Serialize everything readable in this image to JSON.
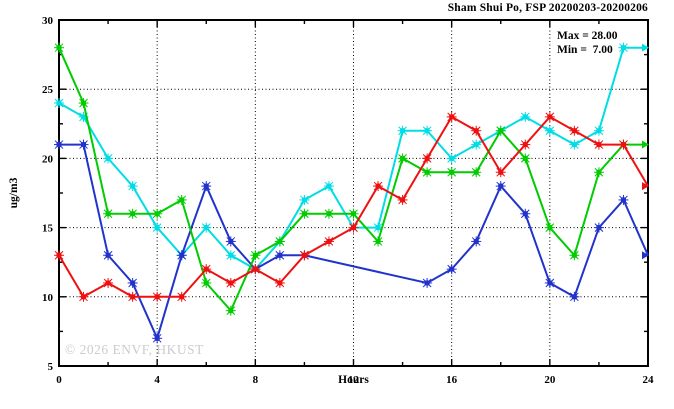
{
  "header": {
    "title": "Sham Shui Po, FSP 20200203-20200206"
  },
  "annotations": {
    "max": "Max = 28.00",
    "min": "Min =  7.00"
  },
  "axes": {
    "y_title": "ug/m3",
    "x_title": "Hours"
  },
  "watermark": "© 2026 ENVF, HKUST",
  "colors": {
    "frame": "#000000",
    "background": "#ffffff",
    "watermark": "#cccccc",
    "grid": "#000000"
  },
  "chart_data": {
    "type": "line",
    "title": "Sham Shui Po, FSP 20200203-20200206",
    "xlabel": "Hours",
    "ylabel": "ug/m3",
    "xlim": [
      0,
      24
    ],
    "ylim": [
      5,
      30
    ],
    "x_major_ticks": [
      0,
      4,
      8,
      12,
      16,
      20,
      24
    ],
    "x_minor_ticks": [
      2,
      6,
      10,
      14,
      18,
      22
    ],
    "y_major_ticks": [
      5,
      10,
      15,
      20,
      25,
      30
    ],
    "y_minor_ticks": [
      7.5,
      12.5,
      17.5,
      22.5,
      27.5
    ],
    "grid": "dotted-at-major-ticks",
    "legend": "none",
    "marker": "square-star",
    "annotations": {
      "max": 28.0,
      "min": 7.0
    },
    "x": [
      0,
      1,
      2,
      3,
      4,
      5,
      6,
      7,
      8,
      9,
      10,
      11,
      12,
      13,
      14,
      15,
      16,
      17,
      18,
      19,
      20,
      21,
      22,
      23,
      24
    ],
    "series": [
      {
        "name": "cyan",
        "color": "#00dde6",
        "values": [
          24,
          23,
          20,
          18,
          15,
          13,
          15,
          13,
          12,
          14,
          17,
          18,
          15,
          15,
          22,
          22,
          20,
          21,
          22,
          23,
          22,
          21,
          22,
          28,
          28
        ]
      },
      {
        "name": "blue",
        "color": "#2233cc",
        "values": [
          21,
          21,
          13,
          11,
          7,
          13,
          18,
          14,
          12,
          13,
          13,
          null,
          null,
          null,
          null,
          11,
          12,
          14,
          18,
          16,
          11,
          10,
          15,
          17,
          13
        ]
      },
      {
        "name": "green",
        "color": "#00cc00",
        "values": [
          28,
          24,
          16,
          16,
          16,
          17,
          11,
          9,
          13,
          14,
          16,
          16,
          16,
          14,
          20,
          19,
          19,
          19,
          22,
          20,
          15,
          13,
          19,
          21,
          21
        ]
      },
      {
        "name": "red",
        "color": "#ee1111",
        "values": [
          13,
          10,
          11,
          10,
          10,
          10,
          12,
          11,
          12,
          11,
          13,
          14,
          15,
          18,
          17,
          20,
          23,
          22,
          19,
          21,
          23,
          22,
          21,
          21,
          18
        ]
      }
    ]
  }
}
